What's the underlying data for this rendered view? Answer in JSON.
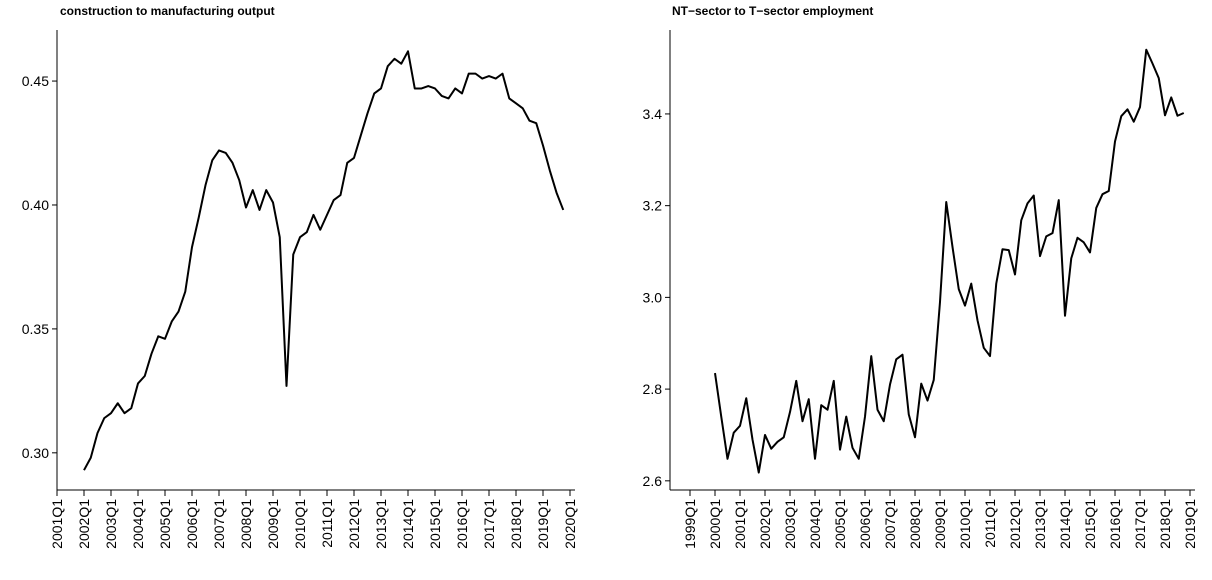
{
  "chart_data": [
    {
      "type": "line",
      "title": "construction to manufacturing output",
      "color": "#000000",
      "x": [
        "2002Q1",
        "2002Q2",
        "2002Q3",
        "2002Q4",
        "2003Q1",
        "2003Q2",
        "2003Q3",
        "2003Q4",
        "2004Q1",
        "2004Q2",
        "2004Q3",
        "2004Q4",
        "2005Q1",
        "2005Q2",
        "2005Q3",
        "2005Q4",
        "2006Q1",
        "2006Q2",
        "2006Q3",
        "2006Q4",
        "2007Q1",
        "2007Q2",
        "2007Q3",
        "2007Q4",
        "2008Q1",
        "2008Q2",
        "2008Q3",
        "2008Q4",
        "2009Q1",
        "2009Q2",
        "2009Q3",
        "2009Q4",
        "2010Q1",
        "2010Q2",
        "2010Q3",
        "2010Q4",
        "2011Q1",
        "2011Q2",
        "2011Q3",
        "2011Q4",
        "2012Q1",
        "2012Q2",
        "2012Q3",
        "2012Q4",
        "2013Q1",
        "2013Q2",
        "2013Q3",
        "2013Q4",
        "2014Q1",
        "2014Q2",
        "2014Q3",
        "2014Q4",
        "2015Q1",
        "2015Q2",
        "2015Q3",
        "2015Q4",
        "2016Q1",
        "2016Q2",
        "2016Q3",
        "2016Q4",
        "2017Q1",
        "2017Q2",
        "2017Q3",
        "2017Q4",
        "2018Q1",
        "2018Q2",
        "2018Q3",
        "2018Q4",
        "2019Q1",
        "2019Q2",
        "2019Q3",
        "2019Q4"
      ],
      "values": [
        0.293,
        0.298,
        0.308,
        0.314,
        0.316,
        0.32,
        0.316,
        0.318,
        0.328,
        0.331,
        0.34,
        0.347,
        0.346,
        0.353,
        0.357,
        0.365,
        0.383,
        0.395,
        0.408,
        0.418,
        0.422,
        0.421,
        0.417,
        0.41,
        0.399,
        0.406,
        0.398,
        0.406,
        0.401,
        0.387,
        0.327,
        0.38,
        0.387,
        0.389,
        0.396,
        0.39,
        0.396,
        0.402,
        0.404,
        0.417,
        0.419,
        0.428,
        0.437,
        0.445,
        0.447,
        0.456,
        0.459,
        0.457,
        0.462,
        0.447,
        0.447,
        0.448,
        0.447,
        0.444,
        0.443,
        0.447,
        0.445,
        0.453,
        0.453,
        0.451,
        0.452,
        0.451,
        0.453,
        0.443,
        0.441,
        0.439,
        0.434,
        0.433,
        0.424,
        0.414,
        0.405,
        0.398
      ],
      "xlim": [
        "2001Q1",
        "2020Q1"
      ],
      "xticks": [
        "2001Q1",
        "2002Q1",
        "2003Q1",
        "2004Q1",
        "2005Q1",
        "2006Q1",
        "2007Q1",
        "2008Q1",
        "2009Q1",
        "2010Q1",
        "2011Q1",
        "2012Q1",
        "2013Q1",
        "2014Q1",
        "2015Q1",
        "2016Q1",
        "2017Q1",
        "2018Q1",
        "2019Q1",
        "2020Q1"
      ],
      "ylim": [
        0.285,
        0.4706
      ],
      "yticks": [
        {
          "value": 0.3,
          "label": "0.30"
        },
        0.35,
        {
          "value": 0.4,
          "label": "0.40"
        },
        0.45
      ]
    },
    {
      "type": "line",
      "title": "NT−sector to T−sector employment",
      "color": "#000000",
      "x": [
        "2000Q1",
        "2000Q2",
        "2000Q3",
        "2000Q4",
        "2001Q1",
        "2001Q2",
        "2001Q3",
        "2001Q4",
        "2002Q1",
        "2002Q2",
        "2002Q3",
        "2002Q4",
        "2003Q1",
        "2003Q2",
        "2003Q3",
        "2003Q4",
        "2004Q1",
        "2004Q2",
        "2004Q3",
        "2004Q4",
        "2005Q1",
        "2005Q2",
        "2005Q3",
        "2005Q4",
        "2006Q1",
        "2006Q2",
        "2006Q3",
        "2006Q4",
        "2007Q1",
        "2007Q2",
        "2007Q3",
        "2007Q4",
        "2008Q1",
        "2008Q2",
        "2008Q3",
        "2008Q4",
        "2009Q1",
        "2009Q2",
        "2009Q3",
        "2009Q4",
        "2010Q1",
        "2010Q2",
        "2010Q3",
        "2010Q4",
        "2011Q1",
        "2011Q2",
        "2011Q3",
        "2011Q4",
        "2012Q1",
        "2012Q2",
        "2012Q3",
        "2012Q4",
        "2013Q1",
        "2013Q2",
        "2013Q3",
        "2013Q4",
        "2014Q1",
        "2014Q2",
        "2014Q3",
        "2014Q4",
        "2015Q1",
        "2015Q2",
        "2015Q3",
        "2015Q4",
        "2016Q1",
        "2016Q2",
        "2016Q3",
        "2016Q4",
        "2017Q1",
        "2017Q2",
        "2017Q3",
        "2017Q4",
        "2018Q1",
        "2018Q2",
        "2018Q3",
        "2018Q4"
      ],
      "values": [
        2.835,
        2.74,
        2.648,
        2.705,
        2.72,
        2.78,
        2.69,
        2.618,
        2.7,
        2.67,
        2.685,
        2.695,
        2.75,
        2.818,
        2.73,
        2.778,
        2.648,
        2.765,
        2.755,
        2.818,
        2.668,
        2.74,
        2.672,
        2.648,
        2.74,
        2.872,
        2.755,
        2.73,
        2.81,
        2.865,
        2.875,
        2.745,
        2.695,
        2.812,
        2.775,
        2.82,
        2.99,
        3.208,
        3.11,
        3.018,
        2.982,
        3.03,
        2.95,
        2.89,
        2.872,
        3.03,
        3.105,
        3.103,
        3.05,
        3.168,
        3.205,
        3.222,
        3.09,
        3.133,
        3.14,
        3.212,
        2.96,
        3.085,
        3.13,
        3.12,
        3.098,
        3.195,
        3.225,
        3.232,
        3.34,
        3.395,
        3.41,
        3.383,
        3.415,
        3.54,
        3.51,
        3.478,
        3.397,
        3.436,
        3.396,
        3.402
      ],
      "xlim": [
        "1999Q1",
        "2019Q1"
      ],
      "xticks": [
        "1999Q1",
        "2000Q1",
        "2001Q1",
        "2002Q1",
        "2003Q1",
        "2004Q1",
        "2005Q1",
        "2006Q1",
        "2007Q1",
        "2008Q1",
        "2009Q1",
        "2010Q1",
        "2011Q1",
        "2012Q1",
        "2013Q1",
        "2014Q1",
        "2015Q1",
        "2016Q1",
        "2017Q1",
        "2018Q1",
        "2019Q1"
      ],
      "ylim": [
        2.58,
        3.583
      ],
      "yticks": [
        2.6,
        2.8,
        {
          "value": 3,
          "label": "3.0"
        },
        3.2,
        3.4
      ]
    }
  ]
}
